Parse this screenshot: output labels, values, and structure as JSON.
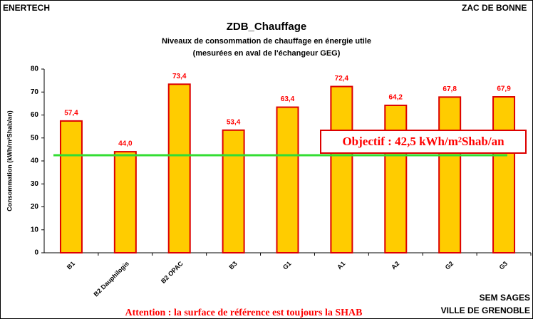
{
  "chart_data": {
    "type": "bar",
    "corner_left": "ENERTECH",
    "corner_right": "ZAC DE BONNE",
    "title": "ZDB_Chauffage",
    "subtitle": [
      "Niveaux de consommation de chauffage en énergie utile",
      "(mesurées en aval de l'échangeur GEG)"
    ],
    "y_label": "Consommation (kWh/m²Shab/an)",
    "categories": [
      "B1",
      "B2 Dauphilogis",
      "B2 OPAC",
      "B3",
      "G1",
      "A1",
      "A2",
      "G2",
      "G3"
    ],
    "values": [
      57.4,
      44.0,
      73.4,
      53.4,
      63.4,
      72.4,
      64.2,
      67.8,
      67.9
    ],
    "value_labels": [
      "57,4",
      "44,0",
      "73,4",
      "53,4",
      "63,4",
      "72,4",
      "64,2",
      "67,8",
      "67,9"
    ],
    "color": "#ffcc00",
    "edge_color": "#dd0000",
    "ylim": [
      0,
      80
    ],
    "yticks": [
      0,
      10,
      20,
      30,
      40,
      50,
      60,
      70,
      80
    ],
    "target_line": {
      "value": 42.5,
      "label": "Objectif : 42,5 kWh/m²Shab/an",
      "color": "#33dd33"
    },
    "footer_right": [
      "SEM SAGES",
      "VILLE DE GRENOBLE"
    ],
    "footer_note": "Attention : la surface de référence est toujours la SHAB"
  }
}
